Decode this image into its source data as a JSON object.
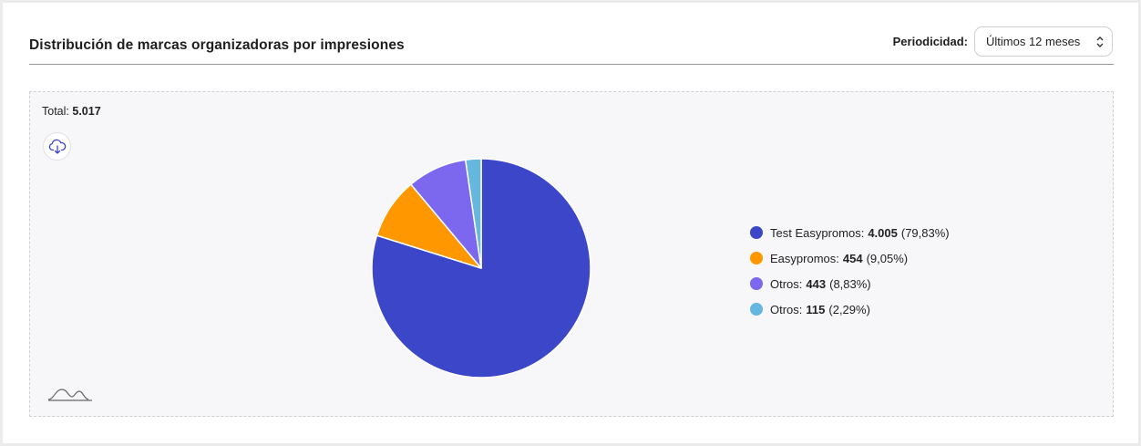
{
  "header": {
    "title": "Distribución de marcas organizadoras por impresiones",
    "period_label": "Periodicidad:",
    "period_value": "Últimos 12 meses"
  },
  "panel": {
    "total_label": "Total:",
    "total_value": "5.017",
    "download_icon": "cloud-download-icon",
    "brand_icon": "mountain-wave-logo-icon"
  },
  "chart_data": {
    "type": "pie",
    "title": "Distribución de marcas organizadoras por impresiones",
    "total": 5017,
    "legend_placement": "right",
    "slices": [
      {
        "name": "Test Easypromos",
        "value": 4005,
        "value_text": "4.005",
        "percent_text": "(79,83%)",
        "color": "#3b46c9"
      },
      {
        "name": "Easypromos",
        "value": 454,
        "value_text": "454",
        "percent_text": "(9,05%)",
        "color": "#ff9800"
      },
      {
        "name": "Otros",
        "value": 443,
        "value_text": "443",
        "percent_text": "(8,83%)",
        "color": "#7b68ee"
      },
      {
        "name": "Otros",
        "value": 115,
        "value_text": "115",
        "percent_text": "(2,29%)",
        "color": "#66b7e0"
      }
    ]
  }
}
